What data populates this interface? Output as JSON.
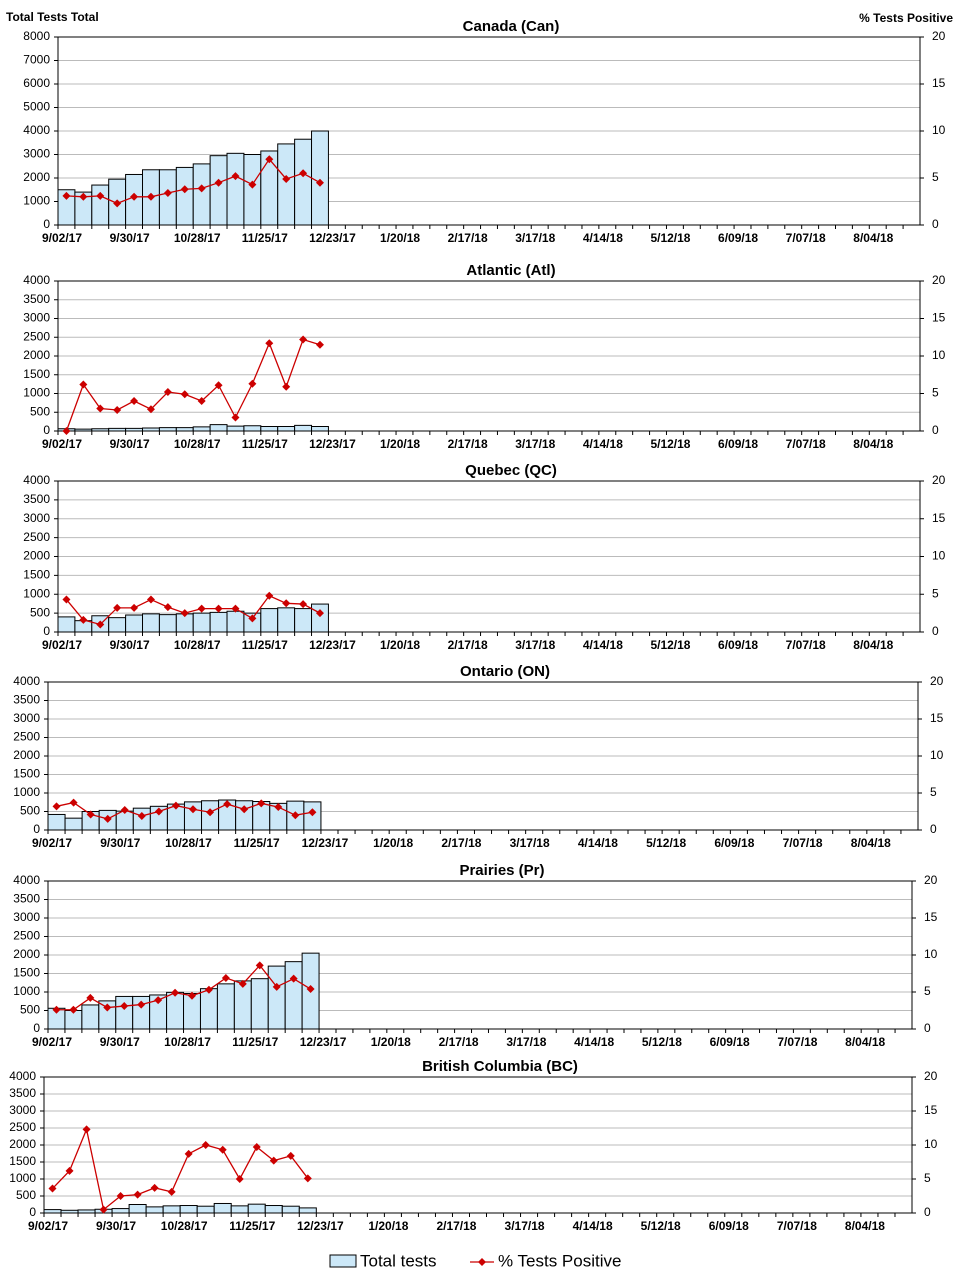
{
  "chart_data": [
    {
      "type": "bar-line",
      "title": "Canada (Can)",
      "y_label": "Total Tests Total",
      "y2_label": "% Tests Positive",
      "categories": [
        "9/02/17",
        null,
        null,
        null,
        "9/30/17",
        null,
        null,
        null,
        "10/28/17",
        null,
        null,
        null,
        "11/25/17",
        null,
        null,
        null,
        "12/23/17",
        null,
        null,
        null,
        "1/20/18",
        null,
        null,
        null,
        "2/17/18",
        null,
        null,
        null,
        "3/17/18",
        null,
        null,
        null,
        "4/14/18",
        null,
        null,
        null,
        "5/12/18",
        null,
        null,
        null,
        "6/09/18",
        null,
        null,
        null,
        "7/07/18",
        null,
        null,
        null,
        "8/04/18",
        null,
        null
      ],
      "series": [
        {
          "name": "Total tests",
          "color": "#cce8f8",
          "values": [
            1500,
            1400,
            1700,
            1950,
            2150,
            2350,
            2350,
            2450,
            2600,
            2950,
            3050,
            3000,
            3150,
            3450,
            3650,
            4000,
            null,
            null,
            null,
            null,
            null,
            null,
            null,
            null,
            null,
            null,
            null,
            null,
            null,
            null,
            null,
            null,
            null,
            null,
            null,
            null,
            null,
            null,
            null,
            null,
            null,
            null,
            null,
            null,
            null,
            null,
            null,
            null,
            null,
            null,
            null
          ]
        },
        {
          "name": "% Tests Positive",
          "color": "#cc0000",
          "axis": "y2",
          "values": [
            3.1,
            3.0,
            3.1,
            2.3,
            3.0,
            3.0,
            3.4,
            3.8,
            3.9,
            4.5,
            5.2,
            4.3,
            7.0,
            4.9,
            5.5,
            4.5,
            null,
            null,
            null,
            null,
            null,
            null,
            null,
            null,
            null,
            null,
            null,
            null,
            null,
            null,
            null,
            null,
            null,
            null,
            null,
            null,
            null,
            null,
            null,
            null,
            null,
            null,
            null,
            null,
            null,
            null,
            null,
            null,
            null,
            null,
            null
          ]
        }
      ],
      "ylim": [
        0,
        8000
      ],
      "yticks": [
        0,
        1000,
        2000,
        3000,
        4000,
        5000,
        6000,
        7000,
        8000
      ],
      "y2lim": [
        0,
        20
      ],
      "y2ticks": [
        0,
        5,
        10,
        15,
        20
      ],
      "grid": true
    },
    {
      "type": "bar-line",
      "title": "Atlantic (Atl)",
      "categories": [
        "9/02/17",
        null,
        null,
        null,
        "9/30/17",
        null,
        null,
        null,
        "10/28/17",
        null,
        null,
        null,
        "11/25/17",
        null,
        null,
        null,
        "12/23/17",
        null,
        null,
        null,
        "1/20/18",
        null,
        null,
        null,
        "2/17/18",
        null,
        null,
        null,
        "3/17/18",
        null,
        null,
        null,
        "4/14/18",
        null,
        null,
        null,
        "5/12/18",
        null,
        null,
        null,
        "6/09/18",
        null,
        null,
        null,
        "7/07/18",
        null,
        null,
        null,
        "8/04/18",
        null,
        null
      ],
      "series": [
        {
          "color": "#cce8f8",
          "values": [
            60,
            50,
            60,
            70,
            70,
            80,
            90,
            90,
            110,
            170,
            130,
            140,
            120,
            120,
            150,
            120,
            null,
            null,
            null,
            null,
            null,
            null,
            null,
            null,
            null,
            null,
            null,
            null,
            null,
            null,
            null,
            null,
            null,
            null,
            null,
            null,
            null,
            null,
            null,
            null,
            null,
            null,
            null,
            null,
            null,
            null,
            null,
            null,
            null,
            null,
            null
          ]
        },
        {
          "color": "#cc0000",
          "axis": "y2",
          "values": [
            0,
            6.2,
            3.0,
            2.8,
            4.0,
            2.9,
            5.2,
            4.9,
            4.0,
            6.1,
            1.8,
            6.3,
            11.7,
            5.9,
            12.2,
            11.5,
            null,
            null,
            null,
            null,
            null,
            null,
            null,
            null,
            null,
            null,
            null,
            null,
            null,
            null,
            null,
            null,
            null,
            null,
            null,
            null,
            null,
            null,
            null,
            null,
            null,
            null,
            null,
            null,
            null,
            null,
            null,
            null,
            null,
            null,
            null
          ]
        }
      ],
      "ylim": [
        0,
        4000
      ],
      "yticks": [
        0,
        500,
        1000,
        1500,
        2000,
        2500,
        3000,
        3500,
        4000
      ],
      "y2lim": [
        0,
        20
      ],
      "y2ticks": [
        0,
        5,
        10,
        15,
        20
      ],
      "grid": true
    },
    {
      "type": "bar-line",
      "title": "Quebec (QC)",
      "categories": [
        "9/02/17",
        null,
        null,
        null,
        "9/30/17",
        null,
        null,
        null,
        "10/28/17",
        null,
        null,
        null,
        "11/25/17",
        null,
        null,
        null,
        "12/23/17",
        null,
        null,
        null,
        "1/20/18",
        null,
        null,
        null,
        "2/17/18",
        null,
        null,
        null,
        "3/17/18",
        null,
        null,
        null,
        "4/14/18",
        null,
        null,
        null,
        "5/12/18",
        null,
        null,
        null,
        "6/09/18",
        null,
        null,
        null,
        "7/07/18",
        null,
        null,
        null,
        "8/04/18",
        null,
        null
      ],
      "series": [
        {
          "color": "#cce8f8",
          "values": [
            400,
            300,
            430,
            380,
            450,
            480,
            460,
            480,
            500,
            520,
            550,
            500,
            620,
            640,
            620,
            740,
            null,
            null,
            null,
            null,
            null,
            null,
            null,
            null,
            null,
            null,
            null,
            null,
            null,
            null,
            null,
            null,
            null,
            null,
            null,
            null,
            null,
            null,
            null,
            null,
            null,
            null,
            null,
            null,
            null,
            null,
            null,
            null,
            null,
            null,
            null
          ]
        },
        {
          "color": "#cc0000",
          "axis": "y2",
          "values": [
            4.3,
            1.6,
            1.0,
            3.2,
            3.2,
            4.3,
            3.3,
            2.5,
            3.1,
            3.1,
            3.1,
            1.8,
            4.8,
            3.8,
            3.7,
            2.5,
            null,
            null,
            null,
            null,
            null,
            null,
            null,
            null,
            null,
            null,
            null,
            null,
            null,
            null,
            null,
            null,
            null,
            null,
            null,
            null,
            null,
            null,
            null,
            null,
            null,
            null,
            null,
            null,
            null,
            null,
            null,
            null,
            null,
            null,
            null
          ]
        }
      ],
      "ylim": [
        0,
        4000
      ],
      "yticks": [
        0,
        500,
        1000,
        1500,
        2000,
        2500,
        3000,
        3500,
        4000
      ],
      "y2lim": [
        0,
        20
      ],
      "y2ticks": [
        0,
        5,
        10,
        15,
        20
      ],
      "grid": true
    },
    {
      "type": "bar-line",
      "title": "Ontario (ON)",
      "categories": [
        "9/02/17",
        null,
        null,
        null,
        "9/30/17",
        null,
        null,
        null,
        "10/28/17",
        null,
        null,
        null,
        "11/25/17",
        null,
        null,
        null,
        "12/23/17",
        null,
        null,
        null,
        "1/20/18",
        null,
        null,
        null,
        "2/17/18",
        null,
        null,
        null,
        "3/17/18",
        null,
        null,
        null,
        "4/14/18",
        null,
        null,
        null,
        "5/12/18",
        null,
        null,
        null,
        "6/09/18",
        null,
        null,
        null,
        "7/07/18",
        null,
        null,
        null,
        "8/04/18",
        null,
        null
      ],
      "series": [
        {
          "color": "#cce8f8",
          "values": [
            420,
            320,
            500,
            530,
            510,
            590,
            640,
            700,
            760,
            790,
            810,
            790,
            770,
            720,
            780,
            760,
            null,
            null,
            null,
            null,
            null,
            null,
            null,
            null,
            null,
            null,
            null,
            null,
            null,
            null,
            null,
            null,
            null,
            null,
            null,
            null,
            null,
            null,
            null,
            null,
            null,
            null,
            null,
            null,
            null,
            null,
            null,
            null,
            null,
            null,
            null
          ]
        },
        {
          "color": "#cc0000",
          "axis": "y2",
          "values": [
            3.2,
            3.7,
            2.1,
            1.5,
            2.7,
            1.9,
            2.5,
            3.3,
            2.8,
            2.4,
            3.5,
            2.8,
            3.6,
            3.1,
            2.0,
            2.4,
            null,
            null,
            null,
            null,
            null,
            null,
            null,
            null,
            null,
            null,
            null,
            null,
            null,
            null,
            null,
            null,
            null,
            null,
            null,
            null,
            null,
            null,
            null,
            null,
            null,
            null,
            null,
            null,
            null,
            null,
            null,
            null,
            null,
            null,
            null
          ]
        }
      ],
      "ylim": [
        0,
        4000
      ],
      "yticks": [
        0,
        500,
        1000,
        1500,
        2000,
        2500,
        3000,
        3500,
        4000
      ],
      "y2lim": [
        0,
        20
      ],
      "y2ticks": [
        0,
        5,
        10,
        15,
        20
      ],
      "grid": true
    },
    {
      "type": "bar-line",
      "title": "Prairies (Pr)",
      "categories": [
        "9/02/17",
        null,
        null,
        null,
        "9/30/17",
        null,
        null,
        null,
        "10/28/17",
        null,
        null,
        null,
        "11/25/17",
        null,
        null,
        null,
        "12/23/17",
        null,
        null,
        null,
        "1/20/18",
        null,
        null,
        null,
        "2/17/18",
        null,
        null,
        null,
        "3/17/18",
        null,
        null,
        null,
        "4/14/18",
        null,
        null,
        null,
        "5/12/18",
        null,
        null,
        null,
        "6/09/18",
        null,
        null,
        null,
        "7/07/18",
        null,
        null,
        null,
        "8/04/18",
        null,
        null
      ],
      "series": [
        {
          "color": "#cce8f8",
          "values": [
            560,
            500,
            650,
            760,
            880,
            880,
            920,
            990,
            960,
            1090,
            1220,
            1300,
            1360,
            1700,
            1820,
            2050,
            null,
            null,
            null,
            null,
            null,
            null,
            null,
            null,
            null,
            null,
            null,
            null,
            null,
            null,
            null,
            null,
            null,
            null,
            null,
            null,
            null,
            null,
            null,
            null,
            null,
            null,
            null,
            null,
            null,
            null,
            null,
            null,
            null,
            null,
            null
          ]
        },
        {
          "color": "#cc0000",
          "axis": "y2",
          "values": [
            2.6,
            2.6,
            4.2,
            2.9,
            3.1,
            3.3,
            3.9,
            4.9,
            4.5,
            5.3,
            6.9,
            6.1,
            8.6,
            5.7,
            6.8,
            5.4,
            null,
            null,
            null,
            null,
            null,
            null,
            null,
            null,
            null,
            null,
            null,
            null,
            null,
            null,
            null,
            null,
            null,
            null,
            null,
            null,
            null,
            null,
            null,
            null,
            null,
            null,
            null,
            null,
            null,
            null,
            null,
            null,
            null,
            null,
            null
          ]
        }
      ],
      "ylim": [
        0,
        4000
      ],
      "yticks": [
        0,
        500,
        1000,
        1500,
        2000,
        2500,
        3000,
        3500,
        4000
      ],
      "y2lim": [
        0,
        20
      ],
      "y2ticks": [
        0,
        5,
        10,
        15,
        20
      ],
      "grid": true
    },
    {
      "type": "bar-line",
      "title": "British Columbia (BC)",
      "categories": [
        "9/02/17",
        null,
        null,
        null,
        "9/30/17",
        null,
        null,
        null,
        "10/28/17",
        null,
        null,
        null,
        "11/25/17",
        null,
        null,
        null,
        "12/23/17",
        null,
        null,
        null,
        "1/20/18",
        null,
        null,
        null,
        "2/17/18",
        null,
        null,
        null,
        "3/17/18",
        null,
        null,
        null,
        "4/14/18",
        null,
        null,
        null,
        "5/12/18",
        null,
        null,
        null,
        "6/09/18",
        null,
        null,
        null,
        "7/07/18",
        null,
        null,
        null,
        "8/04/18",
        null,
        null
      ],
      "series": [
        {
          "color": "#cce8f8",
          "values": [
            100,
            80,
            90,
            110,
            130,
            250,
            180,
            210,
            220,
            200,
            280,
            210,
            260,
            220,
            200,
            150,
            null,
            null,
            null,
            null,
            null,
            null,
            null,
            null,
            null,
            null,
            null,
            null,
            null,
            null,
            null,
            null,
            null,
            null,
            null,
            null,
            null,
            null,
            null,
            null,
            null,
            null,
            null,
            null,
            null,
            null,
            null,
            null,
            null,
            null,
            null
          ]
        },
        {
          "color": "#cc0000",
          "axis": "y2",
          "values": [
            3.6,
            6.2,
            12.3,
            0.5,
            2.5,
            2.7,
            3.7,
            3.1,
            8.7,
            10.0,
            9.3,
            5.0,
            9.7,
            7.7,
            8.4,
            5.1,
            null,
            null,
            null,
            null,
            null,
            null,
            null,
            null,
            null,
            null,
            null,
            null,
            null,
            null,
            null,
            null,
            null,
            null,
            null,
            null,
            null,
            null,
            null,
            null,
            null,
            null,
            null,
            null,
            null,
            null,
            null,
            null,
            null,
            null,
            null
          ]
        }
      ],
      "ylim": [
        0,
        4000
      ],
      "yticks": [
        0,
        500,
        1000,
        1500,
        2000,
        2500,
        3000,
        3500,
        4000
      ],
      "y2lim": [
        0,
        20
      ],
      "y2ticks": [
        0,
        5,
        10,
        15,
        20
      ],
      "grid": true
    }
  ]
}
